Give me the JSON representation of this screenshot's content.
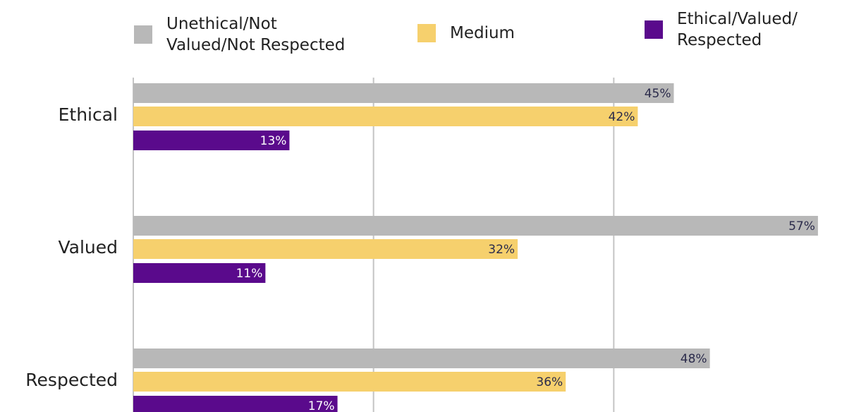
{
  "chart_data": {
    "type": "hbar",
    "categories": [
      "Ethical",
      "Valued",
      "Respected"
    ],
    "series": [
      {
        "name": "Unethical/Not Valued/Not Respected",
        "color": "#b8b8b8",
        "values": [
          45,
          57,
          48
        ],
        "value_labels": [
          "45%",
          "57%",
          "48%"
        ]
      },
      {
        "name": "Medium",
        "color": "#f6d06d",
        "values": [
          42,
          32,
          36
        ],
        "value_labels": [
          "42%",
          "32%",
          "36%"
        ]
      },
      {
        "name": "Ethical/Valued/Respected",
        "color": "#5a0a8c",
        "values": [
          13,
          11,
          17
        ],
        "value_labels": [
          "13%",
          "11%",
          "17%"
        ]
      }
    ],
    "xlim": [
      0,
      60
    ],
    "xticks": [
      0,
      20,
      40
    ],
    "grid": true,
    "legend": "top"
  }
}
